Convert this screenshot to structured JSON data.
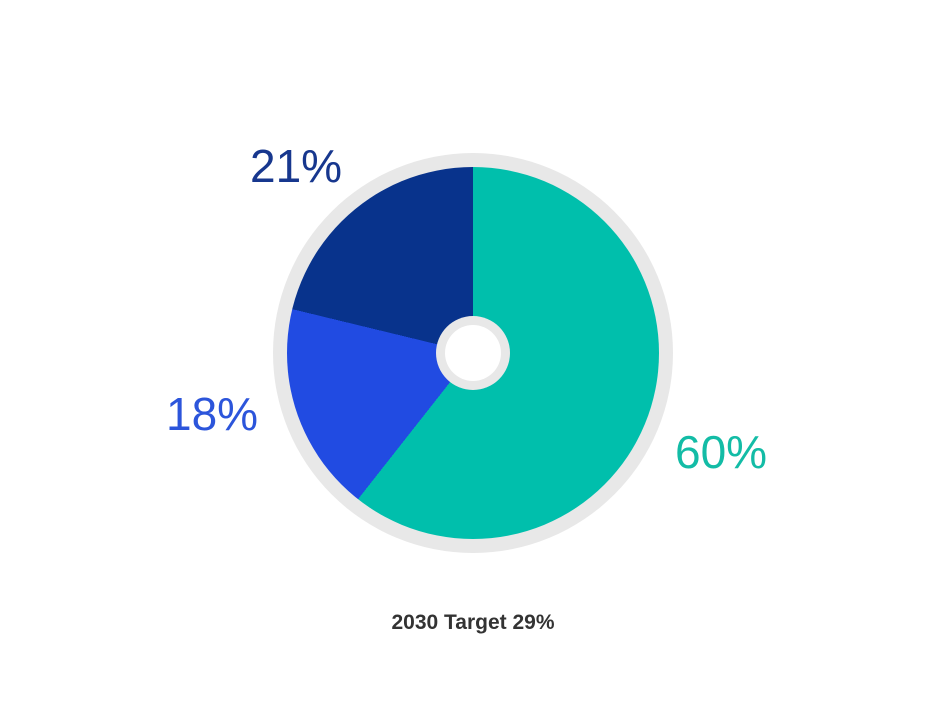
{
  "chart_data": {
    "type": "pie",
    "donut": true,
    "start_angle_deg": 0,
    "direction": "clockwise",
    "legend_position": "none",
    "slices": [
      {
        "label": "60%",
        "value": 60,
        "color": "#00BFAC",
        "label_color": "#13BCA6"
      },
      {
        "label": "18%",
        "value": 18,
        "color": "#214BE2",
        "label_color": "#2C55DB"
      },
      {
        "label": "21%",
        "value": 21,
        "color": "#08338C",
        "label_color": "#17378E"
      }
    ],
    "ring_color": "#E8E8E8",
    "hole_color": "#FFFFFF",
    "caption": "2030 Target 29%",
    "caption_color": "#333333"
  }
}
